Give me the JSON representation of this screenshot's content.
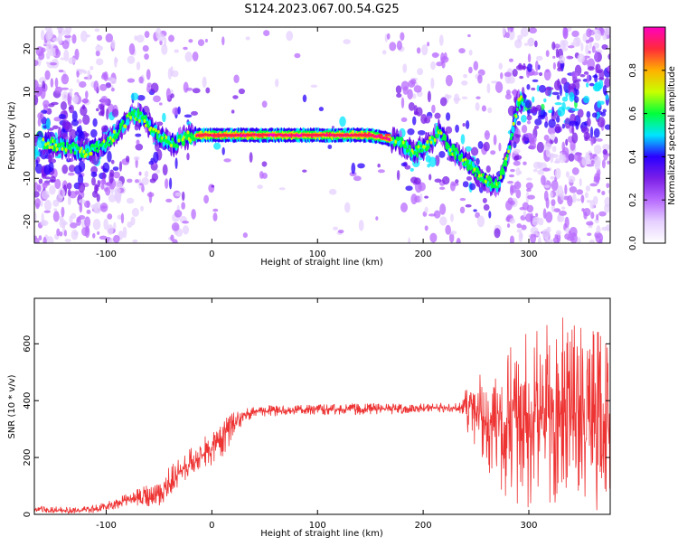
{
  "figure": {
    "title": "S124.2023.067.00.54.G25"
  },
  "chart_data": [
    {
      "type": "heatmap",
      "xlabel": "Height of straight line (km)",
      "ylabel": "Frequency (Hz)",
      "xlim": [
        -168,
        377
      ],
      "ylim": [
        -25,
        25
      ],
      "x_ticks": [
        -100,
        0,
        100,
        200,
        300
      ],
      "y_ticks": [
        -20,
        -10,
        0,
        10,
        20
      ],
      "grid": false,
      "colorbar": {
        "label": "Normalized spectral amplitude",
        "range": [
          0.0,
          1.0
        ],
        "ticks": [
          "0.0",
          "0.2",
          "0.4",
          "0.6",
          "0.8"
        ],
        "tick_values": [
          0.0,
          0.2,
          0.4,
          0.6,
          0.8
        ],
        "colormap": [
          "#ffffff",
          "#e6d0ff",
          "#b86bff",
          "#7b1fe8",
          "#2a00ff",
          "#00e5ff",
          "#00ff3c",
          "#c8ff00",
          "#ffb000",
          "#ff2a3a",
          "#ff00c0"
        ]
      },
      "ridge": {
        "x": [
          -150,
          -120,
          -100,
          -85,
          -75,
          -65,
          -55,
          -45,
          -35,
          -25,
          -15,
          0,
          50,
          100,
          150,
          170,
          180,
          190,
          200,
          210,
          215,
          225,
          240,
          255,
          270,
          280,
          290
        ],
        "y": [
          -2,
          -4,
          -2,
          2,
          5,
          4,
          1,
          -1,
          -2,
          -0.5,
          0,
          0,
          0,
          0,
          0,
          -1,
          -2,
          -4,
          -3,
          -1,
          1,
          -3,
          -6,
          -10,
          -12,
          -5,
          8
        ]
      },
      "region_x_ranges": {
        "steady_tone": [
          -15,
          170
        ],
        "noisy_left": [
          -168,
          -90
        ],
        "noisy_right": [
          280,
          377
        ]
      }
    },
    {
      "type": "line",
      "xlabel": "Height of straight line (km)",
      "ylabel": "SNR (10 * v/v)",
      "xlim": [
        -168,
        377
      ],
      "ylim": [
        0,
        760
      ],
      "x_ticks": [
        -100,
        0,
        100,
        200,
        300
      ],
      "y_ticks": [
        0,
        200,
        400,
        600
      ],
      "grid": false,
      "series": [
        {
          "color": "#ee3333",
          "envelope": {
            "x": [
              -168,
              -130,
              -110,
              -90,
              -70,
              -50,
              -40,
              -30,
              -15,
              0,
              10,
              20,
              30,
              40,
              60,
              80,
              100,
              150,
              200,
              237,
              245,
              260,
              280,
              300,
              340,
              377
            ],
            "low": [
              5,
              3,
              5,
              20,
              30,
              25,
              60,
              100,
              140,
              170,
              200,
              250,
              320,
              340,
              345,
              348,
              350,
              350,
              355,
              355,
              250,
              150,
              40,
              20,
              10,
              5
            ],
            "high": [
              30,
              25,
              35,
              60,
              90,
              130,
              170,
              200,
              250,
              300,
              330,
              360,
              375,
              380,
              385,
              385,
              388,
              390,
              390,
              395,
              520,
              480,
              600,
              660,
              700,
              640
            ],
            "center": [
              15,
              12,
              18,
              40,
              55,
              65,
              110,
              150,
              190,
              240,
              270,
              310,
              350,
              360,
              365,
              366,
              368,
              370,
              372,
              375,
              380,
              310,
              330,
              350,
              360,
              340
            ]
          }
        }
      ]
    }
  ]
}
